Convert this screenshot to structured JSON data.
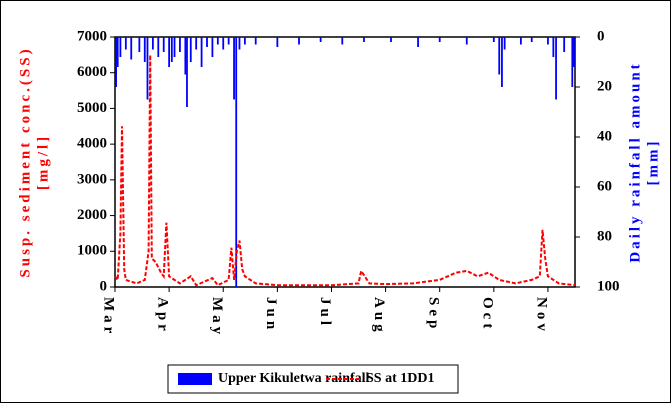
{
  "chart_data": {
    "type": "bar-line",
    "y_label": "Susp. sediment conc.(SS)",
    "y_unit": "[mg/l]",
    "y2_label": "Daily rainfall amount",
    "y2_unit": "[mm]",
    "xlim": [
      0,
      8.5
    ],
    "xticks": [
      {
        "value": 0,
        "label": "Mar"
      },
      {
        "value": 1,
        "label": "Apr"
      },
      {
        "value": 2,
        "label": "May"
      },
      {
        "value": 3,
        "label": "Jun"
      },
      {
        "value": 4,
        "label": "Jul"
      },
      {
        "value": 5,
        "label": "Aug"
      },
      {
        "value": 6,
        "label": "Sep"
      },
      {
        "value": 7,
        "label": "Oct"
      },
      {
        "value": 8,
        "label": "Nov"
      }
    ],
    "ylim": [
      0,
      7000
    ],
    "yticks": [
      0,
      1000,
      2000,
      3000,
      4000,
      5000,
      6000,
      7000
    ],
    "y2lim": [
      100,
      0
    ],
    "y2ticks": [
      0,
      20,
      40,
      60,
      80,
      100
    ],
    "legend": "bottom",
    "series": [
      {
        "name": "Upper Kikuletwa rainfall",
        "type": "bar",
        "axis": "y2",
        "color": "#0000ff",
        "x": [
          0.02,
          0.05,
          0.1,
          0.2,
          0.3,
          0.45,
          0.55,
          0.6,
          0.7,
          0.8,
          0.9,
          1.0,
          1.05,
          1.1,
          1.2,
          1.3,
          1.33,
          1.4,
          1.5,
          1.6,
          1.7,
          1.8,
          1.9,
          2.0,
          2.1,
          2.2,
          2.24,
          2.3,
          2.4,
          2.6,
          3.0,
          3.4,
          3.8,
          4.2,
          4.6,
          5.1,
          5.6,
          6.0,
          6.5,
          7.0,
          7.1,
          7.15,
          7.2,
          7.5,
          7.7,
          8.0,
          8.1,
          8.15,
          8.3,
          8.45,
          8.48
        ],
        "values": [
          20,
          12,
          8,
          5,
          9,
          6,
          10,
          25,
          5,
          8,
          6,
          12,
          10,
          8,
          6,
          15,
          28,
          10,
          5,
          12,
          4,
          8,
          3,
          5,
          3,
          25,
          100,
          5,
          3,
          3,
          4,
          3,
          2,
          3,
          2,
          2,
          4,
          2,
          3,
          2,
          15,
          20,
          5,
          3,
          2,
          3,
          8,
          25,
          6,
          20,
          12
        ]
      },
      {
        "name": "SS at 1DD1",
        "type": "line",
        "axis": "y",
        "color": "#ff0000",
        "dashed": true,
        "x": [
          0.0,
          0.05,
          0.1,
          0.13,
          0.17,
          0.2,
          0.4,
          0.55,
          0.62,
          0.65,
          0.68,
          0.75,
          0.85,
          0.9,
          0.95,
          1.0,
          1.1,
          1.2,
          1.4,
          1.5,
          1.8,
          1.9,
          2.1,
          2.15,
          2.2,
          2.25,
          2.3,
          2.35,
          2.4,
          2.6,
          3.0,
          4.0,
          4.5,
          4.55,
          4.7,
          5.0,
          5.5,
          6.0,
          6.3,
          6.5,
          6.7,
          6.9,
          7.1,
          7.4,
          7.7,
          7.85,
          7.9,
          7.95,
          8.0,
          8.2,
          8.5
        ],
        "values": [
          300,
          200,
          1500,
          4500,
          500,
          200,
          100,
          200,
          1000,
          6500,
          800,
          700,
          400,
          300,
          1800,
          300,
          200,
          100,
          300,
          50,
          250,
          50,
          200,
          1100,
          200,
          1000,
          1300,
          500,
          300,
          100,
          50,
          50,
          100,
          450,
          100,
          80,
          100,
          200,
          400,
          450,
          300,
          400,
          200,
          100,
          200,
          300,
          1600,
          800,
          300,
          100,
          50
        ]
      }
    ]
  }
}
